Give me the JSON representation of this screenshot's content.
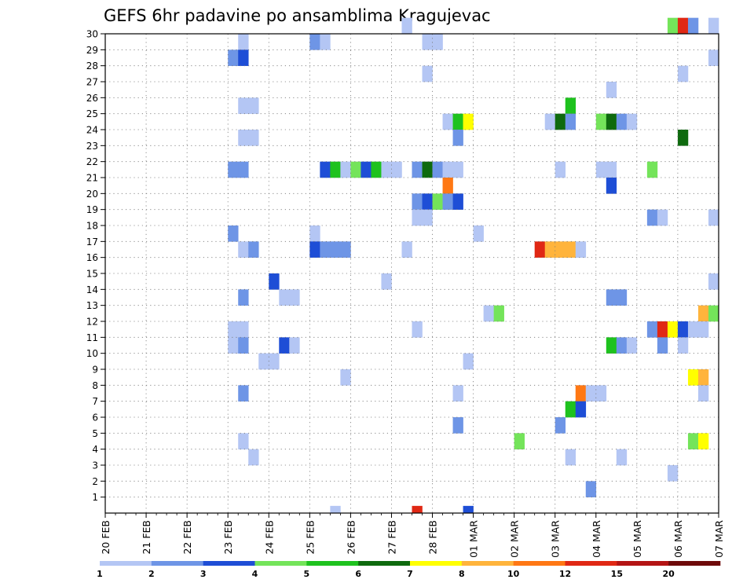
{
  "chart_data": {
    "type": "heatmap",
    "title": "GEFS 6hr padavine po ansamblima Kragujevac",
    "x_tick_labels": [
      "20 FEB",
      "21 FEB",
      "22 FEB",
      "23 FEB",
      "24 FEB",
      "25 FEB",
      "26 FEB",
      "27 FEB",
      "28 FEB",
      "01 MAR",
      "02 MAR",
      "03 MAR",
      "04 MAR",
      "05 MAR",
      "06 MAR",
      "07 MAR"
    ],
    "x_range_steps": [
      0,
      60
    ],
    "steps_per_day": 4,
    "y_tick_labels": [
      "1",
      "2",
      "3",
      "4",
      "5",
      "6",
      "7",
      "8",
      "9",
      "10",
      "11",
      "12",
      "13",
      "14",
      "15",
      "16",
      "17",
      "18",
      "19",
      "20",
      "21",
      "22",
      "23",
      "24",
      "25",
      "26",
      "27",
      "28",
      "29",
      "30"
    ],
    "ylim": [
      0,
      30
    ],
    "grid": true,
    "legend": {
      "position": "bottom",
      "levels": [
        "1",
        "2",
        "3",
        "4",
        "5",
        "6",
        "7",
        "8",
        "10",
        "12",
        "15",
        "20"
      ],
      "colors": [
        "#b4c6f4",
        "#6e95e6",
        "#1e4ed6",
        "#74e45a",
        "#1ec21e",
        "#0e6a0e",
        "#ffff00",
        "#ffb43c",
        "#ff7814",
        "#e02814",
        "#b41414",
        "#6e0a0a"
      ]
    },
    "cells": [
      {
        "t": 30,
        "m": 0,
        "c": 10
      },
      {
        "t": 30,
        "m": 0,
        "c": 10
      },
      {
        "t": 59,
        "m": 30,
        "c": 1
      },
      {
        "t": 55,
        "m": 30,
        "c": 4
      },
      {
        "t": 56,
        "m": 30,
        "c": 10
      },
      {
        "t": 57,
        "m": 30,
        "c": 2
      },
      {
        "t": 29,
        "m": 30,
        "c": 1
      },
      {
        "t": 13,
        "m": 29,
        "c": 1
      },
      {
        "t": 20,
        "m": 29,
        "c": 2
      },
      {
        "t": 21,
        "m": 29,
        "c": 1
      },
      {
        "t": 31,
        "m": 29,
        "c": 1
      },
      {
        "t": 32,
        "m": 29,
        "c": 1
      },
      {
        "t": 12,
        "m": 28,
        "c": 2
      },
      {
        "t": 13,
        "m": 28,
        "c": 3
      },
      {
        "t": 59,
        "m": 28,
        "c": 1
      },
      {
        "t": 31,
        "m": 27,
        "c": 1
      },
      {
        "t": 56,
        "m": 27,
        "c": 1
      },
      {
        "t": 49,
        "m": 26,
        "c": 1
      },
      {
        "t": 13,
        "m": 25,
        "c": 1
      },
      {
        "t": 14,
        "m": 25,
        "c": 1
      },
      {
        "t": 45,
        "m": 25,
        "c": 5
      },
      {
        "t": 33,
        "m": 24,
        "c": 1
      },
      {
        "t": 34,
        "m": 24,
        "c": 5
      },
      {
        "t": 35,
        "m": 24,
        "c": 7
      },
      {
        "t": 43,
        "m": 24,
        "c": 1
      },
      {
        "t": 44,
        "m": 24,
        "c": 6
      },
      {
        "t": 45,
        "m": 24,
        "c": 2
      },
      {
        "t": 48,
        "m": 24,
        "c": 4
      },
      {
        "t": 49,
        "m": 24,
        "c": 6
      },
      {
        "t": 50,
        "m": 24,
        "c": 2
      },
      {
        "t": 51,
        "m": 24,
        "c": 1
      },
      {
        "t": 13,
        "m": 23,
        "c": 1
      },
      {
        "t": 14,
        "m": 23,
        "c": 1
      },
      {
        "t": 34,
        "m": 23,
        "c": 2
      },
      {
        "t": 56,
        "m": 23,
        "c": 6
      },
      {
        "t": 12,
        "m": 21,
        "c": 2
      },
      {
        "t": 13,
        "m": 21,
        "c": 2
      },
      {
        "t": 21,
        "m": 21,
        "c": 3
      },
      {
        "t": 22,
        "m": 21,
        "c": 5
      },
      {
        "t": 23,
        "m": 21,
        "c": 1
      },
      {
        "t": 24,
        "m": 21,
        "c": 4
      },
      {
        "t": 25,
        "m": 21,
        "c": 3
      },
      {
        "t": 26,
        "m": 21,
        "c": 5
      },
      {
        "t": 27,
        "m": 21,
        "c": 1
      },
      {
        "t": 28,
        "m": 21,
        "c": 1
      },
      {
        "t": 30,
        "m": 21,
        "c": 2
      },
      {
        "t": 31,
        "m": 21,
        "c": 6
      },
      {
        "t": 32,
        "m": 21,
        "c": 2
      },
      {
        "t": 33,
        "m": 21,
        "c": 1
      },
      {
        "t": 34,
        "m": 21,
        "c": 1
      },
      {
        "t": 44,
        "m": 21,
        "c": 1
      },
      {
        "t": 48,
        "m": 21,
        "c": 1
      },
      {
        "t": 49,
        "m": 21,
        "c": 1
      },
      {
        "t": 53,
        "m": 21,
        "c": 4
      },
      {
        "t": 33,
        "m": 20,
        "c": 9
      },
      {
        "t": 49,
        "m": 20,
        "c": 3
      },
      {
        "t": 30,
        "m": 19,
        "c": 2
      },
      {
        "t": 31,
        "m": 19,
        "c": 3
      },
      {
        "t": 32,
        "m": 19,
        "c": 4
      },
      {
        "t": 33,
        "m": 19,
        "c": 2
      },
      {
        "t": 34,
        "m": 19,
        "c": 3
      },
      {
        "t": 30,
        "m": 18,
        "c": 1
      },
      {
        "t": 31,
        "m": 18,
        "c": 1
      },
      {
        "t": 53,
        "m": 18,
        "c": 2
      },
      {
        "t": 54,
        "m": 18,
        "c": 1
      },
      {
        "t": 59,
        "m": 18,
        "c": 1
      },
      {
        "t": 12,
        "m": 17,
        "c": 2
      },
      {
        "t": 20,
        "m": 17,
        "c": 1
      },
      {
        "t": 36,
        "m": 17,
        "c": 1
      },
      {
        "t": 13,
        "m": 16,
        "c": 1
      },
      {
        "t": 14,
        "m": 16,
        "c": 2
      },
      {
        "t": 20,
        "m": 16,
        "c": 3
      },
      {
        "t": 21,
        "m": 16,
        "c": 2
      },
      {
        "t": 22,
        "m": 16,
        "c": 2
      },
      {
        "t": 23,
        "m": 16,
        "c": 2
      },
      {
        "t": 29,
        "m": 16,
        "c": 1
      },
      {
        "t": 42,
        "m": 16,
        "c": 10
      },
      {
        "t": 43,
        "m": 16,
        "c": 8
      },
      {
        "t": 44,
        "m": 16,
        "c": 8
      },
      {
        "t": 45,
        "m": 16,
        "c": 8
      },
      {
        "t": 46,
        "m": 16,
        "c": 1
      },
      {
        "t": 16,
        "m": 14,
        "c": 3
      },
      {
        "t": 27,
        "m": 14,
        "c": 1
      },
      {
        "t": 59,
        "m": 14,
        "c": 1
      },
      {
        "t": 13,
        "m": 13,
        "c": 2
      },
      {
        "t": 17,
        "m": 13,
        "c": 1
      },
      {
        "t": 18,
        "m": 13,
        "c": 1
      },
      {
        "t": 49,
        "m": 13,
        "c": 2
      },
      {
        "t": 50,
        "m": 13,
        "c": 2
      },
      {
        "t": 37,
        "m": 12,
        "c": 1
      },
      {
        "t": 38,
        "m": 12,
        "c": 4
      },
      {
        "t": 58,
        "m": 12,
        "c": 8
      },
      {
        "t": 59,
        "m": 12,
        "c": 4
      },
      {
        "t": 12,
        "m": 11,
        "c": 1
      },
      {
        "t": 13,
        "m": 11,
        "c": 1
      },
      {
        "t": 30,
        "m": 11,
        "c": 1
      },
      {
        "t": 53,
        "m": 11,
        "c": 2
      },
      {
        "t": 54,
        "m": 11,
        "c": 10
      },
      {
        "t": 55,
        "m": 11,
        "c": 7
      },
      {
        "t": 56,
        "m": 11,
        "c": 3
      },
      {
        "t": 57,
        "m": 11,
        "c": 1
      },
      {
        "t": 58,
        "m": 11,
        "c": 1
      },
      {
        "t": 12,
        "m": 10,
        "c": 1
      },
      {
        "t": 13,
        "m": 10,
        "c": 2
      },
      {
        "t": 17,
        "m": 10,
        "c": 3
      },
      {
        "t": 18,
        "m": 10,
        "c": 1
      },
      {
        "t": 49,
        "m": 10,
        "c": 5
      },
      {
        "t": 50,
        "m": 10,
        "c": 2
      },
      {
        "t": 51,
        "m": 10,
        "c": 1
      },
      {
        "t": 54,
        "m": 10,
        "c": 2
      },
      {
        "t": 56,
        "m": 10,
        "c": 1
      },
      {
        "t": 15,
        "m": 9,
        "c": 1
      },
      {
        "t": 16,
        "m": 9,
        "c": 1
      },
      {
        "t": 35,
        "m": 9,
        "c": 1
      },
      {
        "t": 23,
        "m": 8,
        "c": 1
      },
      {
        "t": 57,
        "m": 8,
        "c": 7
      },
      {
        "t": 58,
        "m": 8,
        "c": 8
      },
      {
        "t": 13,
        "m": 7,
        "c": 2
      },
      {
        "t": 34,
        "m": 7,
        "c": 1
      },
      {
        "t": 46,
        "m": 7,
        "c": 9
      },
      {
        "t": 47,
        "m": 7,
        "c": 1
      },
      {
        "t": 48,
        "m": 7,
        "c": 1
      },
      {
        "t": 58,
        "m": 7,
        "c": 1
      },
      {
        "t": 45,
        "m": 6,
        "c": 5
      },
      {
        "t": 46,
        "m": 6,
        "c": 3
      },
      {
        "t": 34,
        "m": 5,
        "c": 2
      },
      {
        "t": 44,
        "m": 5,
        "c": 2
      },
      {
        "t": 13,
        "m": 4,
        "c": 1
      },
      {
        "t": 40,
        "m": 4,
        "c": 4
      },
      {
        "t": 57,
        "m": 4,
        "c": 4
      },
      {
        "t": 58,
        "m": 4,
        "c": 7
      },
      {
        "t": 14,
        "m": 3,
        "c": 1
      },
      {
        "t": 45,
        "m": 3,
        "c": 1
      },
      {
        "t": 50,
        "m": 3,
        "c": 1
      },
      {
        "t": 55,
        "m": 2,
        "c": 1
      },
      {
        "t": 47,
        "m": 1,
        "c": 2
      },
      {
        "t": 22,
        "m": 0,
        "c": 1
      },
      {
        "t": 35,
        "m": 0,
        "c": 3
      }
    ]
  }
}
